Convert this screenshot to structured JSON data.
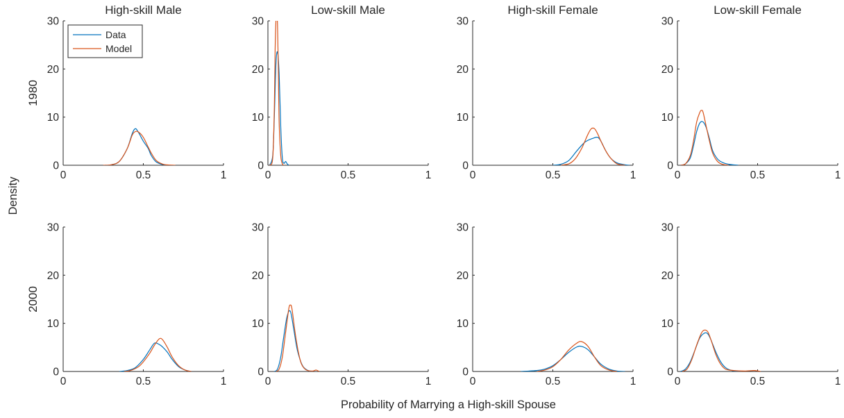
{
  "figure": {
    "ylabel": "Density",
    "xlabel": "Probability of Marrying a High-skill Spouse",
    "row_labels": [
      "1980",
      "2000"
    ],
    "column_titles": [
      "High-skill Male",
      "Low-skill Male",
      "High-skill Female",
      "Low-skill Female"
    ],
    "legend": [
      "Data",
      "Model"
    ],
    "colors": {
      "Data": "#0072BD",
      "Model": "#D95319",
      "axis": "#262626"
    },
    "x_ticks": [
      "0",
      "0.5",
      "1"
    ],
    "y_ticks": [
      "0",
      "10",
      "20",
      "30"
    ]
  },
  "chart_data": [
    {
      "type": "line",
      "row": "1980",
      "title": "High-skill Male",
      "xlim": [
        0,
        1
      ],
      "ylim": [
        0,
        30
      ],
      "legend_location": "top-left",
      "series": [
        {
          "name": "Data",
          "x": [
            0.26,
            0.3,
            0.35,
            0.4,
            0.43,
            0.45,
            0.47,
            0.5,
            0.53,
            0.55,
            0.58,
            0.62,
            0.66
          ],
          "y": [
            0,
            0.1,
            0.8,
            3.5,
            6.5,
            7.6,
            6.8,
            5.0,
            3.5,
            2.0,
            0.7,
            0.15,
            0
          ]
        },
        {
          "name": "Model",
          "x": [
            0.25,
            0.3,
            0.35,
            0.4,
            0.43,
            0.45,
            0.47,
            0.5,
            0.53,
            0.55,
            0.58,
            0.62,
            0.66,
            0.7
          ],
          "y": [
            0,
            0.1,
            0.8,
            3.5,
            6.2,
            7.0,
            6.9,
            5.8,
            3.8,
            2.5,
            1.0,
            0.25,
            0.05,
            0
          ]
        }
      ]
    },
    {
      "type": "line",
      "row": "1980",
      "title": "Low-skill Male",
      "xlim": [
        0,
        1
      ],
      "ylim": [
        0,
        30
      ],
      "series": [
        {
          "name": "Data",
          "x": [
            0.01,
            0.03,
            0.04,
            0.05,
            0.06,
            0.07,
            0.08,
            0.09,
            0.1,
            0.11,
            0.12,
            0.13
          ],
          "y": [
            0,
            2,
            10,
            21,
            23.5,
            19,
            8,
            1.5,
            0.4,
            0.8,
            0.3,
            0
          ]
        },
        {
          "name": "Model",
          "x": [
            0.01,
            0.03,
            0.04,
            0.045,
            0.05,
            0.055,
            0.06,
            0.065,
            0.07,
            0.08,
            0.09,
            0.1
          ],
          "y": [
            0,
            1.5,
            12,
            24,
            30,
            32,
            29,
            20,
            9,
            2,
            0.3,
            0
          ]
        }
      ]
    },
    {
      "type": "line",
      "row": "1980",
      "title": "High-skill Female",
      "xlim": [
        0,
        1
      ],
      "ylim": [
        0,
        30
      ],
      "series": [
        {
          "name": "Data",
          "x": [
            0.5,
            0.55,
            0.6,
            0.65,
            0.7,
            0.75,
            0.78,
            0.8,
            0.83,
            0.86,
            0.9,
            0.95,
            0.98
          ],
          "y": [
            0,
            0.2,
            1.0,
            3.0,
            4.8,
            5.6,
            5.8,
            5.0,
            3.0,
            1.5,
            0.5,
            0.1,
            0
          ]
        },
        {
          "name": "Model",
          "x": [
            0.55,
            0.6,
            0.63,
            0.65,
            0.68,
            0.7,
            0.72,
            0.74,
            0.76,
            0.78,
            0.8,
            0.83,
            0.86,
            0.9,
            0.95
          ],
          "y": [
            0,
            0.3,
            1.0,
            1.8,
            3.5,
            5.0,
            6.5,
            7.6,
            7.6,
            6.5,
            5.0,
            3.0,
            1.5,
            0.3,
            0
          ]
        }
      ]
    },
    {
      "type": "line",
      "row": "1980",
      "title": "Low-skill Female",
      "xlim": [
        0,
        1
      ],
      "ylim": [
        0,
        30
      ],
      "series": [
        {
          "name": "Data",
          "x": [
            0.02,
            0.05,
            0.08,
            0.1,
            0.12,
            0.14,
            0.16,
            0.18,
            0.2,
            0.22,
            0.25,
            0.28,
            0.32,
            0.38
          ],
          "y": [
            0,
            0.3,
            1.5,
            4.0,
            7.0,
            8.8,
            9.0,
            7.8,
            5.5,
            3.0,
            1.3,
            0.6,
            0.2,
            0
          ]
        },
        {
          "name": "Model",
          "x": [
            0.02,
            0.05,
            0.08,
            0.1,
            0.12,
            0.14,
            0.15,
            0.16,
            0.18,
            0.2,
            0.22,
            0.25,
            0.28,
            0.32
          ],
          "y": [
            0,
            0.3,
            2.0,
            5.0,
            9.0,
            11.0,
            11.4,
            11.0,
            8.0,
            5.0,
            2.5,
            0.8,
            0.2,
            0
          ]
        }
      ]
    },
    {
      "type": "line",
      "row": "2000",
      "title": "High-skill Male",
      "xlim": [
        0,
        1
      ],
      "ylim": [
        0,
        30
      ],
      "series": [
        {
          "name": "Data",
          "x": [
            0.35,
            0.4,
            0.45,
            0.5,
            0.54,
            0.57,
            0.6,
            0.62,
            0.65,
            0.68,
            0.72,
            0.76,
            0.8
          ],
          "y": [
            0,
            0.2,
            0.8,
            2.5,
            4.5,
            5.9,
            5.6,
            5.1,
            4.0,
            2.5,
            1.0,
            0.3,
            0
          ]
        },
        {
          "name": "Model",
          "x": [
            0.38,
            0.42,
            0.47,
            0.5,
            0.54,
            0.57,
            0.6,
            0.62,
            0.65,
            0.68,
            0.72,
            0.76,
            0.8
          ],
          "y": [
            0,
            0.2,
            1.0,
            2.0,
            3.8,
            5.5,
            6.8,
            6.6,
            5.0,
            3.0,
            1.2,
            0.3,
            0
          ]
        }
      ]
    },
    {
      "type": "line",
      "row": "2000",
      "title": "Low-skill Male",
      "xlim": [
        0,
        1
      ],
      "ylim": [
        0,
        30
      ],
      "series": [
        {
          "name": "Data",
          "x": [
            0.04,
            0.06,
            0.08,
            0.1,
            0.12,
            0.14,
            0.16,
            0.18,
            0.2,
            0.22,
            0.25,
            0.28
          ],
          "y": [
            0,
            0.5,
            3.0,
            7.5,
            11.5,
            12.5,
            9.0,
            5.0,
            2.5,
            1.0,
            0.2,
            0
          ]
        },
        {
          "name": "Model",
          "x": [
            0.05,
            0.07,
            0.09,
            0.11,
            0.13,
            0.14,
            0.15,
            0.17,
            0.19,
            0.21,
            0.24,
            0.28,
            0.3,
            0.32
          ],
          "y": [
            0,
            0.5,
            3.0,
            8.0,
            13.0,
            13.8,
            13.0,
            8.0,
            4.0,
            1.5,
            0.3,
            0.1,
            0.3,
            0
          ]
        }
      ]
    },
    {
      "type": "line",
      "row": "2000",
      "title": "High-skill Female",
      "xlim": [
        0,
        1
      ],
      "ylim": [
        0,
        30
      ],
      "series": [
        {
          "name": "Data",
          "x": [
            0.3,
            0.4,
            0.45,
            0.5,
            0.55,
            0.6,
            0.65,
            0.68,
            0.72,
            0.76,
            0.8,
            0.85,
            0.9,
            0.95
          ],
          "y": [
            0,
            0.2,
            0.5,
            1.2,
            2.5,
            4.0,
            5.1,
            5.2,
            4.5,
            3.0,
            1.5,
            0.5,
            0.1,
            0
          ]
        },
        {
          "name": "Model",
          "x": [
            0.4,
            0.45,
            0.5,
            0.55,
            0.6,
            0.65,
            0.68,
            0.72,
            0.76,
            0.8,
            0.85,
            0.9
          ],
          "y": [
            0,
            0.3,
            1.0,
            2.5,
            4.5,
            5.9,
            6.2,
            5.2,
            3.0,
            1.2,
            0.3,
            0
          ]
        }
      ]
    },
    {
      "type": "line",
      "row": "2000",
      "title": "Low-skill Female",
      "xlim": [
        0,
        1
      ],
      "ylim": [
        0,
        30
      ],
      "series": [
        {
          "name": "Data",
          "x": [
            0.02,
            0.05,
            0.08,
            0.11,
            0.14,
            0.17,
            0.19,
            0.21,
            0.24,
            0.27,
            0.3,
            0.34,
            0.4
          ],
          "y": [
            0,
            0.5,
            2.0,
            4.5,
            7.0,
            8.0,
            7.8,
            6.5,
            4.0,
            2.0,
            0.8,
            0.2,
            0
          ]
        },
        {
          "name": "Model",
          "x": [
            0.03,
            0.06,
            0.09,
            0.12,
            0.15,
            0.17,
            0.19,
            0.21,
            0.24,
            0.27,
            0.3,
            0.35,
            0.42,
            0.48,
            0.52
          ],
          "y": [
            0,
            0.5,
            2.5,
            5.5,
            8.0,
            8.6,
            8.2,
            6.5,
            3.5,
            1.5,
            0.5,
            0.2,
            0.1,
            0.2,
            0
          ]
        }
      ]
    }
  ]
}
